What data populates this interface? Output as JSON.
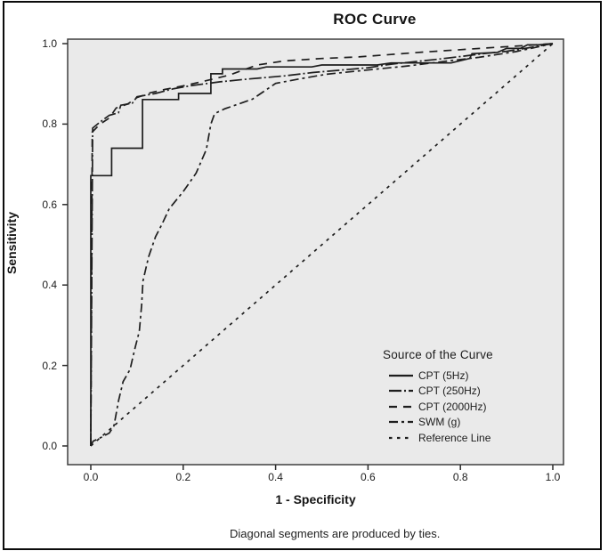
{
  "title": "ROC Curve",
  "footnote": "Diagonal segments are produced by ties.",
  "axes": {
    "x_label": "1 - Specificity",
    "y_label": "Sensitivity",
    "x_ticks": [
      "0.0",
      "0.2",
      "0.4",
      "0.6",
      "0.8",
      "1.0"
    ],
    "y_ticks": [
      "0.0",
      "0.2",
      "0.4",
      "0.6",
      "0.8",
      "1.0"
    ]
  },
  "legend": {
    "title": "Source of the Curve"
  },
  "colors": {
    "curve": "#1e1e1e",
    "plot_background": "#eaeaea",
    "frame_stroke": "#3f3f3f",
    "text": "#1c1c1c"
  },
  "chart_data": {
    "type": "line",
    "title": "ROC Curve",
    "xlabel": "1 - Specificity",
    "ylabel": "Sensitivity",
    "xlim": [
      0,
      1
    ],
    "ylim": [
      0,
      1
    ],
    "grid": false,
    "legend_position": "inside bottom-right",
    "series": [
      {
        "name": "CPT (5Hz)",
        "style": "solid",
        "dash": "",
        "points": [
          [
            0,
            0
          ],
          [
            0,
            0.672
          ],
          [
            0.045,
            0.672
          ],
          [
            0.045,
            0.74
          ],
          [
            0.112,
            0.74
          ],
          [
            0.112,
            0.861
          ],
          [
            0.19,
            0.861
          ],
          [
            0.19,
            0.876
          ],
          [
            0.26,
            0.876
          ],
          [
            0.26,
            0.925
          ],
          [
            0.285,
            0.925
          ],
          [
            0.285,
            0.937
          ],
          [
            0.36,
            0.937
          ],
          [
            0.38,
            0.942
          ],
          [
            0.478,
            0.942
          ],
          [
            0.5,
            0.947
          ],
          [
            0.62,
            0.947
          ],
          [
            0.65,
            0.952
          ],
          [
            0.78,
            0.952
          ],
          [
            0.82,
            0.963
          ],
          [
            0.825,
            0.975
          ],
          [
            0.88,
            0.978
          ],
          [
            0.9,
            0.988
          ],
          [
            0.93,
            0.988
          ],
          [
            0.945,
            0.997
          ],
          [
            0.97,
            0.997
          ],
          [
            1,
            1
          ]
        ]
      },
      {
        "name": "CPT (250Hz)",
        "style": "long-dash-dot",
        "dash": "14,3,2,3",
        "points": [
          [
            0,
            0
          ],
          [
            0.004,
            0.79
          ],
          [
            0.02,
            0.805
          ],
          [
            0.04,
            0.822
          ],
          [
            0.06,
            0.828
          ],
          [
            0.065,
            0.847
          ],
          [
            0.09,
            0.852
          ],
          [
            0.1,
            0.868
          ],
          [
            0.14,
            0.876
          ],
          [
            0.18,
            0.888
          ],
          [
            0.22,
            0.896
          ],
          [
            0.28,
            0.905
          ],
          [
            0.34,
            0.912
          ],
          [
            0.42,
            0.92
          ],
          [
            0.48,
            0.928
          ],
          [
            0.54,
            0.934
          ],
          [
            0.6,
            0.94
          ],
          [
            0.65,
            0.949
          ],
          [
            0.7,
            0.955
          ],
          [
            0.75,
            0.961
          ],
          [
            0.8,
            0.968
          ],
          [
            0.85,
            0.975
          ],
          [
            0.9,
            0.981
          ],
          [
            0.94,
            0.988
          ],
          [
            1,
            1
          ]
        ]
      },
      {
        "name": "CPT (2000Hz)",
        "style": "long-dash",
        "dash": "9,7",
        "points": [
          [
            0,
            0
          ],
          [
            0.003,
            0.78
          ],
          [
            0.02,
            0.8
          ],
          [
            0.04,
            0.815
          ],
          [
            0.055,
            0.84
          ],
          [
            0.08,
            0.85
          ],
          [
            0.1,
            0.866
          ],
          [
            0.13,
            0.878
          ],
          [
            0.16,
            0.886
          ],
          [
            0.2,
            0.895
          ],
          [
            0.25,
            0.908
          ],
          [
            0.3,
            0.922
          ],
          [
            0.36,
            0.947
          ],
          [
            0.42,
            0.957
          ],
          [
            0.5,
            0.963
          ],
          [
            0.58,
            0.967
          ],
          [
            0.65,
            0.973
          ],
          [
            0.72,
            0.979
          ],
          [
            0.8,
            0.985
          ],
          [
            0.88,
            0.991
          ],
          [
            0.95,
            0.996
          ],
          [
            1,
            1
          ]
        ]
      },
      {
        "name": "SWM (g)",
        "style": "dash-dot",
        "dash": "10,4,3,4",
        "points": [
          [
            0,
            0
          ],
          [
            0.005,
            0.012
          ],
          [
            0.02,
            0.02
          ],
          [
            0.04,
            0.032
          ],
          [
            0.05,
            0.05
          ],
          [
            0.055,
            0.08
          ],
          [
            0.06,
            0.112
          ],
          [
            0.07,
            0.16
          ],
          [
            0.085,
            0.19
          ],
          [
            0.095,
            0.24
          ],
          [
            0.105,
            0.285
          ],
          [
            0.11,
            0.35
          ],
          [
            0.113,
            0.41
          ],
          [
            0.125,
            0.47
          ],
          [
            0.14,
            0.52
          ],
          [
            0.155,
            0.553
          ],
          [
            0.17,
            0.59
          ],
          [
            0.2,
            0.632
          ],
          [
            0.228,
            0.678
          ],
          [
            0.25,
            0.737
          ],
          [
            0.26,
            0.8
          ],
          [
            0.268,
            0.826
          ],
          [
            0.29,
            0.838
          ],
          [
            0.32,
            0.85
          ],
          [
            0.35,
            0.862
          ],
          [
            0.4,
            0.901
          ],
          [
            0.45,
            0.912
          ],
          [
            0.51,
            0.924
          ],
          [
            0.57,
            0.931
          ],
          [
            0.63,
            0.938
          ],
          [
            0.69,
            0.945
          ],
          [
            0.76,
            0.955
          ],
          [
            0.84,
            0.966
          ],
          [
            0.92,
            0.98
          ],
          [
            1,
            1
          ]
        ]
      },
      {
        "name": "Reference Line",
        "style": "dotted",
        "dash": "3.5,5.5",
        "points": [
          [
            0,
            0
          ],
          [
            1,
            1
          ]
        ]
      }
    ]
  }
}
